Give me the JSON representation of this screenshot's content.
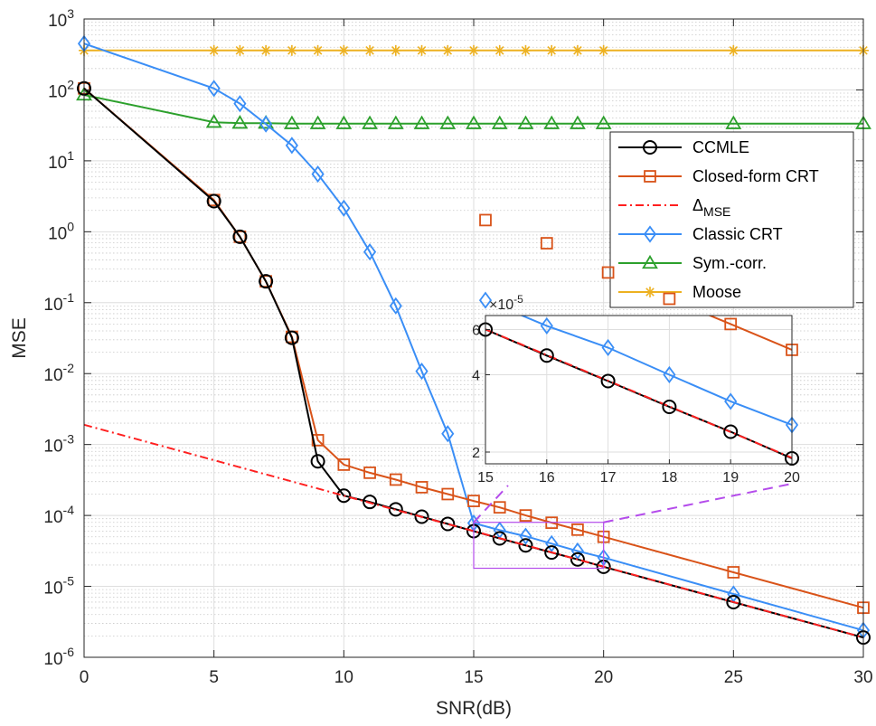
{
  "chart_data": {
    "type": "line",
    "y_scale": "log",
    "xlabel": "SNR(dB)",
    "ylabel": "MSE",
    "xlim": [
      0,
      30
    ],
    "ylim_exp": [
      -6,
      3
    ],
    "grid": true,
    "legend_position": "right",
    "x_ticks": [
      0,
      5,
      10,
      15,
      20,
      25,
      30
    ],
    "x_tick_labels": [
      "0",
      "5",
      "10",
      "15",
      "20",
      "25",
      "30"
    ],
    "y_tick_exponents": [
      3,
      2,
      1,
      0,
      -1,
      -2,
      -3,
      -4,
      -5,
      -6
    ],
    "y_tick_labels": [
      "10",
      "10",
      "10",
      "10",
      "10",
      "10",
      "10",
      "10",
      "10",
      "10"
    ],
    "y_tick_sups": [
      "3",
      "2",
      "1",
      "0",
      "-1",
      "-2",
      "-3",
      "-4",
      "-5",
      "-6"
    ],
    "series": [
      {
        "name": "Moose",
        "color": "#EDB120",
        "marker": "star",
        "dash": "",
        "x": [
          0,
          5,
          6,
          7,
          8,
          9,
          10,
          11,
          12,
          13,
          14,
          15,
          16,
          17,
          18,
          19,
          20,
          25,
          30
        ],
        "y": [
          360,
          360,
          360,
          360,
          360,
          360,
          360,
          360,
          360,
          360,
          360,
          360,
          360,
          360,
          360,
          360,
          360,
          360,
          360
        ]
      },
      {
        "name": "Sym.-corr.",
        "color": "#2CA02C",
        "marker": "triangle",
        "dash": "",
        "x": [
          0,
          5,
          6,
          7,
          8,
          9,
          10,
          11,
          12,
          13,
          14,
          15,
          16,
          17,
          18,
          19,
          20,
          25,
          30
        ],
        "y": [
          85,
          35,
          34,
          34,
          33.5,
          33.5,
          33.5,
          33.5,
          33.5,
          33.5,
          33.5,
          33.5,
          33.5,
          33.5,
          33.5,
          33.5,
          33.5,
          33.5,
          33.5
        ]
      },
      {
        "name": "Classic CRT",
        "color": "#3A8EF6",
        "marker": "diamond",
        "dash": "",
        "x": [
          0,
          5,
          6,
          7,
          8,
          9,
          10,
          11,
          12,
          13,
          14,
          15,
          16,
          17,
          18,
          19,
          20,
          25,
          30
        ],
        "y": [
          450,
          105,
          64,
          33,
          16.5,
          6.5,
          2.15,
          0.52,
          0.09,
          0.0108,
          0.00142,
          7.8e-05,
          6.2e-05,
          5.1e-05,
          4e-05,
          3.15e-05,
          2.55e-05,
          7.8e-06,
          2.4e-06
        ]
      },
      {
        "name": "Closed-form CRT",
        "color": "#D95319",
        "marker": "square",
        "dash": "",
        "x": [
          0,
          5,
          6,
          7,
          8,
          9,
          10,
          11,
          12,
          13,
          14,
          15,
          16,
          17,
          18,
          19,
          20,
          25,
          30
        ],
        "y": [
          105,
          2.8,
          0.85,
          0.2,
          0.033,
          0.00115,
          0.00052,
          0.0004,
          0.00032,
          0.00025,
          0.0002,
          0.00016,
          0.00013,
          0.0001,
          7.9e-05,
          6.3e-05,
          5e-05,
          1.58e-05,
          5e-06
        ]
      },
      {
        "name": "CCMLE",
        "color": "#000000",
        "marker": "circle",
        "dash": "",
        "x": [
          0,
          5,
          6,
          7,
          8,
          9,
          10,
          11,
          12,
          13,
          14,
          15,
          16,
          17,
          18,
          19,
          20,
          25,
          30
        ],
        "y": [
          105,
          2.7,
          0.85,
          0.2,
          0.032,
          0.00058,
          0.00019,
          0.000155,
          0.000122,
          9.6e-05,
          7.6e-05,
          6e-05,
          4.75e-05,
          3.78e-05,
          3e-05,
          2.4e-05,
          1.89e-05,
          6e-06,
          1.9e-06
        ]
      },
      {
        "name": "Δ_MSE",
        "color": "#FF1F1F",
        "marker": "none",
        "dash": "9,4,2,4",
        "x": [
          0,
          30
        ],
        "y": [
          0.0019,
          1.9e-06
        ]
      }
    ],
    "legend": [
      {
        "label": "CCMLE",
        "sub": ""
      },
      {
        "label": "Closed-form CRT",
        "sub": ""
      },
      {
        "label": "Δ",
        "sub": "MSE"
      },
      {
        "label": "Classic CRT",
        "sub": ""
      },
      {
        "label": "Sym.-corr.",
        "sub": ""
      },
      {
        "label": "Moose",
        "sub": ""
      }
    ],
    "inset": {
      "xlim": [
        15,
        20
      ],
      "ylim": [
        1.8e-05,
        6.8e-05
      ],
      "y_scale": "log",
      "multiplier_label": "×10",
      "multiplier_exp": "-5",
      "x_ticks": [
        15,
        16,
        17,
        18,
        19,
        20
      ],
      "x_tick_labels": [
        "15",
        "16",
        "17",
        "18",
        "19",
        "20"
      ],
      "y_ticks": [
        2e-05,
        4e-05,
        6e-05
      ],
      "y_tick_labels": [
        "2",
        "4",
        "6"
      ],
      "zoom_box_x": [
        15,
        20
      ],
      "zoom_box_y": [
        1.8e-05,
        8e-05
      ]
    }
  }
}
